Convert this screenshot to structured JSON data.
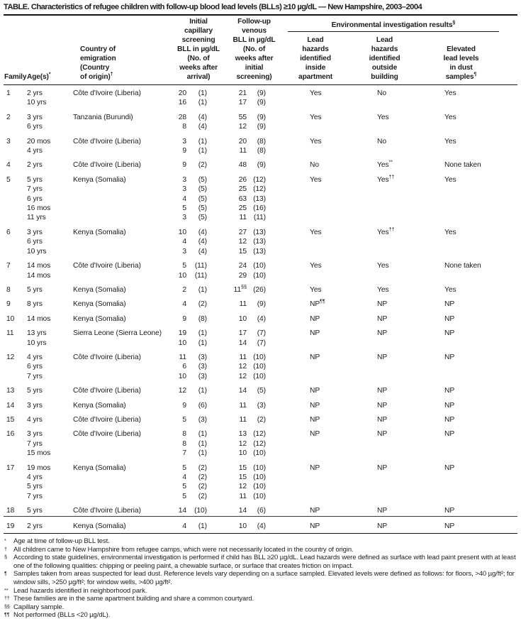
{
  "title": "TABLE. Characteristics of refugee children with follow-up blood lead levels (BLLs) ≥10 µg/dL — New Hampshire, 2003–2004",
  "header": {
    "family": [
      "Family"
    ],
    "ages": [
      "Age(s)^*"
    ],
    "country": [
      "Country of",
      "emigration",
      "(Country",
      "of origin)^†"
    ],
    "initial": [
      "Initial",
      "capillary",
      "screening",
      "BLL in µg/dL",
      "(No. of",
      "weeks after",
      "arrival)"
    ],
    "followup": [
      "Follow-up",
      "venous",
      "BLL in µg/dL",
      "(No. of",
      "weeks after",
      "initial",
      "screening)"
    ],
    "env_group": "Environmental investigation results^§",
    "inside": [
      "Lead",
      "hazards",
      "identified",
      "inside",
      "apartment"
    ],
    "outside": [
      "Lead",
      "hazards",
      "identified",
      "outside",
      "building"
    ],
    "dust": [
      "Elevated",
      "lead levels",
      "in dust",
      "samples^¶"
    ]
  },
  "rows": [
    {
      "family": "1",
      "ages": [
        "2 yrs",
        "10 yrs"
      ],
      "country": "Côte d'Ivoire (Liberia)",
      "initial": [
        [
          "20",
          "(1)"
        ],
        [
          "16",
          "(1)"
        ]
      ],
      "followup": [
        [
          "21",
          "(9)"
        ],
        [
          "17",
          "(9)"
        ]
      ],
      "inside": "Yes",
      "outside": "No",
      "dust": "Yes"
    },
    {
      "family": "2",
      "ages": [
        "3 yrs",
        "6 yrs"
      ],
      "country": "Tanzania (Burundi)",
      "initial": [
        [
          "28",
          "(4)"
        ],
        [
          "8",
          "(4)"
        ]
      ],
      "followup": [
        [
          "55",
          "(9)"
        ],
        [
          "12",
          "(9)"
        ]
      ],
      "inside": "Yes",
      "outside": "Yes",
      "dust": "Yes"
    },
    {
      "family": "3",
      "ages": [
        "20 mos",
        "4 yrs"
      ],
      "country": "Côte d'Ivoire (Liberia)",
      "initial": [
        [
          "3",
          "(1)"
        ],
        [
          "9",
          "(1)"
        ]
      ],
      "followup": [
        [
          "20",
          "(8)"
        ],
        [
          "11",
          "(8)"
        ]
      ],
      "inside": "Yes",
      "outside": "No",
      "dust": "Yes"
    },
    {
      "family": "4",
      "ages": [
        "2 yrs"
      ],
      "country": "Côte d'Ivoire (Liberia)",
      "initial": [
        [
          "9",
          "(2)"
        ]
      ],
      "followup": [
        [
          "48",
          "(9)"
        ]
      ],
      "inside": "No",
      "outside": "Yes^**",
      "dust": "None taken"
    },
    {
      "family": "5",
      "ages": [
        "5 yrs",
        "7 yrs",
        "6 yrs",
        "16 mos",
        "11 yrs"
      ],
      "country": "Kenya (Somalia)",
      "initial": [
        [
          "3",
          "(5)"
        ],
        [
          "3",
          "(5)"
        ],
        [
          "4",
          "(5)"
        ],
        [
          "5",
          "(5)"
        ],
        [
          "3",
          "(5)"
        ]
      ],
      "followup": [
        [
          "26",
          "(12)"
        ],
        [
          "25",
          "(12)"
        ],
        [
          "63",
          "(13)"
        ],
        [
          "25",
          "(16)"
        ],
        [
          "11",
          "(11)"
        ]
      ],
      "inside": "Yes",
      "outside": "Yes^††",
      "dust": "Yes"
    },
    {
      "family": "6",
      "ages": [
        "3 yrs",
        "6 yrs",
        "10 yrs"
      ],
      "country": "Kenya (Somalia)",
      "initial": [
        [
          "10",
          "(4)"
        ],
        [
          "4",
          "(4)"
        ],
        [
          "3",
          "(4)"
        ]
      ],
      "followup": [
        [
          "27",
          "(13)"
        ],
        [
          "12",
          "(13)"
        ],
        [
          "15",
          "(13)"
        ]
      ],
      "inside": "Yes",
      "outside": "Yes^††",
      "dust": "Yes"
    },
    {
      "family": "7",
      "ages": [
        "14 mos",
        "14 mos"
      ],
      "country": "Côte d'Ivoire (Liberia)",
      "initial": [
        [
          "5",
          "(11)"
        ],
        [
          "10",
          "(11)"
        ]
      ],
      "followup": [
        [
          "24",
          "(10)"
        ],
        [
          "29",
          "(10)"
        ]
      ],
      "inside": "Yes",
      "outside": "Yes",
      "dust": "None taken"
    },
    {
      "family": "8",
      "ages": [
        "5 yrs"
      ],
      "country": "Kenya (Somalia)",
      "initial": [
        [
          "2",
          "(1)"
        ]
      ],
      "followup": [
        [
          "11^§§",
          "(26)"
        ]
      ],
      "inside": "Yes",
      "outside": "Yes",
      "dust": "Yes"
    },
    {
      "family": "9",
      "ages": [
        "8 yrs"
      ],
      "country": "Kenya (Somalia)",
      "initial": [
        [
          "4",
          "(2)"
        ]
      ],
      "followup": [
        [
          "11",
          "(9)"
        ]
      ],
      "inside": "NP^¶¶",
      "outside": "NP",
      "dust": "NP"
    },
    {
      "family": "10",
      "ages": [
        "14 mos"
      ],
      "country": "Kenya (Somalia)",
      "initial": [
        [
          "9",
          "(8)"
        ]
      ],
      "followup": [
        [
          "10",
          "(4)"
        ]
      ],
      "inside": "NP",
      "outside": "NP",
      "dust": "NP"
    },
    {
      "family": "11",
      "ages": [
        "13 yrs",
        "10 yrs"
      ],
      "country": "Sierra Leone (Sierra Leone)",
      "initial": [
        [
          "19",
          "(1)"
        ],
        [
          "10",
          "(1)"
        ]
      ],
      "followup": [
        [
          "17",
          "(7)"
        ],
        [
          "14",
          "(7)"
        ]
      ],
      "inside": "NP",
      "outside": "NP",
      "dust": "NP"
    },
    {
      "family": "12",
      "ages": [
        "4 yrs",
        "6 yrs",
        "7 yrs"
      ],
      "country": "Côte d'Ivoire (Liberia)",
      "initial": [
        [
          "11",
          "(3)"
        ],
        [
          "6",
          "(3)"
        ],
        [
          "10",
          "(3)"
        ]
      ],
      "followup": [
        [
          "11",
          "(10)"
        ],
        [
          "12",
          "(10)"
        ],
        [
          "12",
          "(10)"
        ]
      ],
      "inside": "NP",
      "outside": "NP",
      "dust": "NP"
    },
    {
      "family": "13",
      "ages": [
        "5 yrs"
      ],
      "country": "Côte d'Ivoire (Liberia)",
      "initial": [
        [
          "12",
          "(1)"
        ]
      ],
      "followup": [
        [
          "14",
          "(5)"
        ]
      ],
      "inside": "NP",
      "outside": "NP",
      "dust": "NP"
    },
    {
      "family": "14",
      "ages": [
        "3 yrs"
      ],
      "country": "Kenya (Somalia)",
      "initial": [
        [
          "9",
          "(6)"
        ]
      ],
      "followup": [
        [
          "11",
          "(3)"
        ]
      ],
      "inside": "NP",
      "outside": "NP",
      "dust": "NP"
    },
    {
      "family": "15",
      "ages": [
        "4 yrs"
      ],
      "country": "Côte d'Ivoire (Liberia)",
      "initial": [
        [
          "5",
          "(3)"
        ]
      ],
      "followup": [
        [
          "11",
          "(2)"
        ]
      ],
      "inside": "NP",
      "outside": "NP",
      "dust": "NP"
    },
    {
      "family": "16",
      "ages": [
        "3 yrs",
        "7 yrs",
        "15 mos"
      ],
      "country": "Côte d'Ivoire (Liberia)",
      "initial": [
        [
          "8",
          "(1)"
        ],
        [
          "8",
          "(1)"
        ],
        [
          "7",
          "(1)"
        ]
      ],
      "followup": [
        [
          "13",
          "(12)"
        ],
        [
          "12",
          "(12)"
        ],
        [
          "10",
          "(10)"
        ]
      ],
      "inside": "NP",
      "outside": "NP",
      "dust": "NP"
    },
    {
      "family": "17",
      "ages": [
        "19 mos",
        "4 yrs",
        "5 yrs",
        "7 yrs"
      ],
      "country": "Kenya (Somalia)",
      "initial": [
        [
          "5",
          "(2)"
        ],
        [
          "4",
          "(2)"
        ],
        [
          "5",
          "(2)"
        ],
        [
          "5",
          "(2)"
        ]
      ],
      "followup": [
        [
          "15",
          "(10)"
        ],
        [
          "15",
          "(10)"
        ],
        [
          "12",
          "(10)"
        ],
        [
          "11",
          "(10)"
        ]
      ],
      "inside": "NP",
      "outside": "NP",
      "dust": "NP"
    },
    {
      "family": "18",
      "ages": [
        "5 yrs"
      ],
      "country": "Côte d'Ivoire (Liberia)",
      "initial": [
        [
          "14",
          "(10)"
        ]
      ],
      "followup": [
        [
          "14",
          "(6)"
        ]
      ],
      "inside": "NP",
      "outside": "NP",
      "dust": "NP"
    },
    {
      "family": "19",
      "ages": [
        "2 yrs"
      ],
      "country": "Kenya (Somalia)",
      "initial": [
        [
          "4",
          "(1)"
        ]
      ],
      "followup": [
        [
          "10",
          "(4)"
        ]
      ],
      "inside": "NP",
      "outside": "NP",
      "dust": "NP",
      "topline": true
    }
  ],
  "footnotes": [
    {
      "marker": "*",
      "text": "Age at time of follow-up BLL test."
    },
    {
      "marker": "†",
      "text": "All children came to New Hampshire from refugee camps, which were not necessarily located in the country of origin."
    },
    {
      "marker": "§",
      "text": "According to state guidelines, environmental investigation is performed if child has BLL ≥20 µg/dL. Lead hazards were defined as surface with lead paint present with at least one of the following qualities: chipping or peeling paint, a chewable surface, or surface that creates friction on impact."
    },
    {
      "marker": "¶",
      "text": "Samples taken from areas suspected for lead dust. Reference levels vary depending on a surface sampled. Elevated levels were defined as follows: for floors, >40 µg/ft²; for window sills, >250 µg/ft²; for window wells, >400 µg/ft²."
    },
    {
      "marker": "**",
      "text": "Lead hazards identified in neighborhood park."
    },
    {
      "marker": "††",
      "text": "These families are in the same apartment building and share a common courtyard."
    },
    {
      "marker": "§§",
      "text": "Capillary sample."
    },
    {
      "marker": "¶¶",
      "text": "Not performed (BLLs <20 µg/dL)."
    }
  ],
  "colors": {
    "background": "#ffffff",
    "text": "#1c1c1c",
    "rule": "#161616"
  }
}
